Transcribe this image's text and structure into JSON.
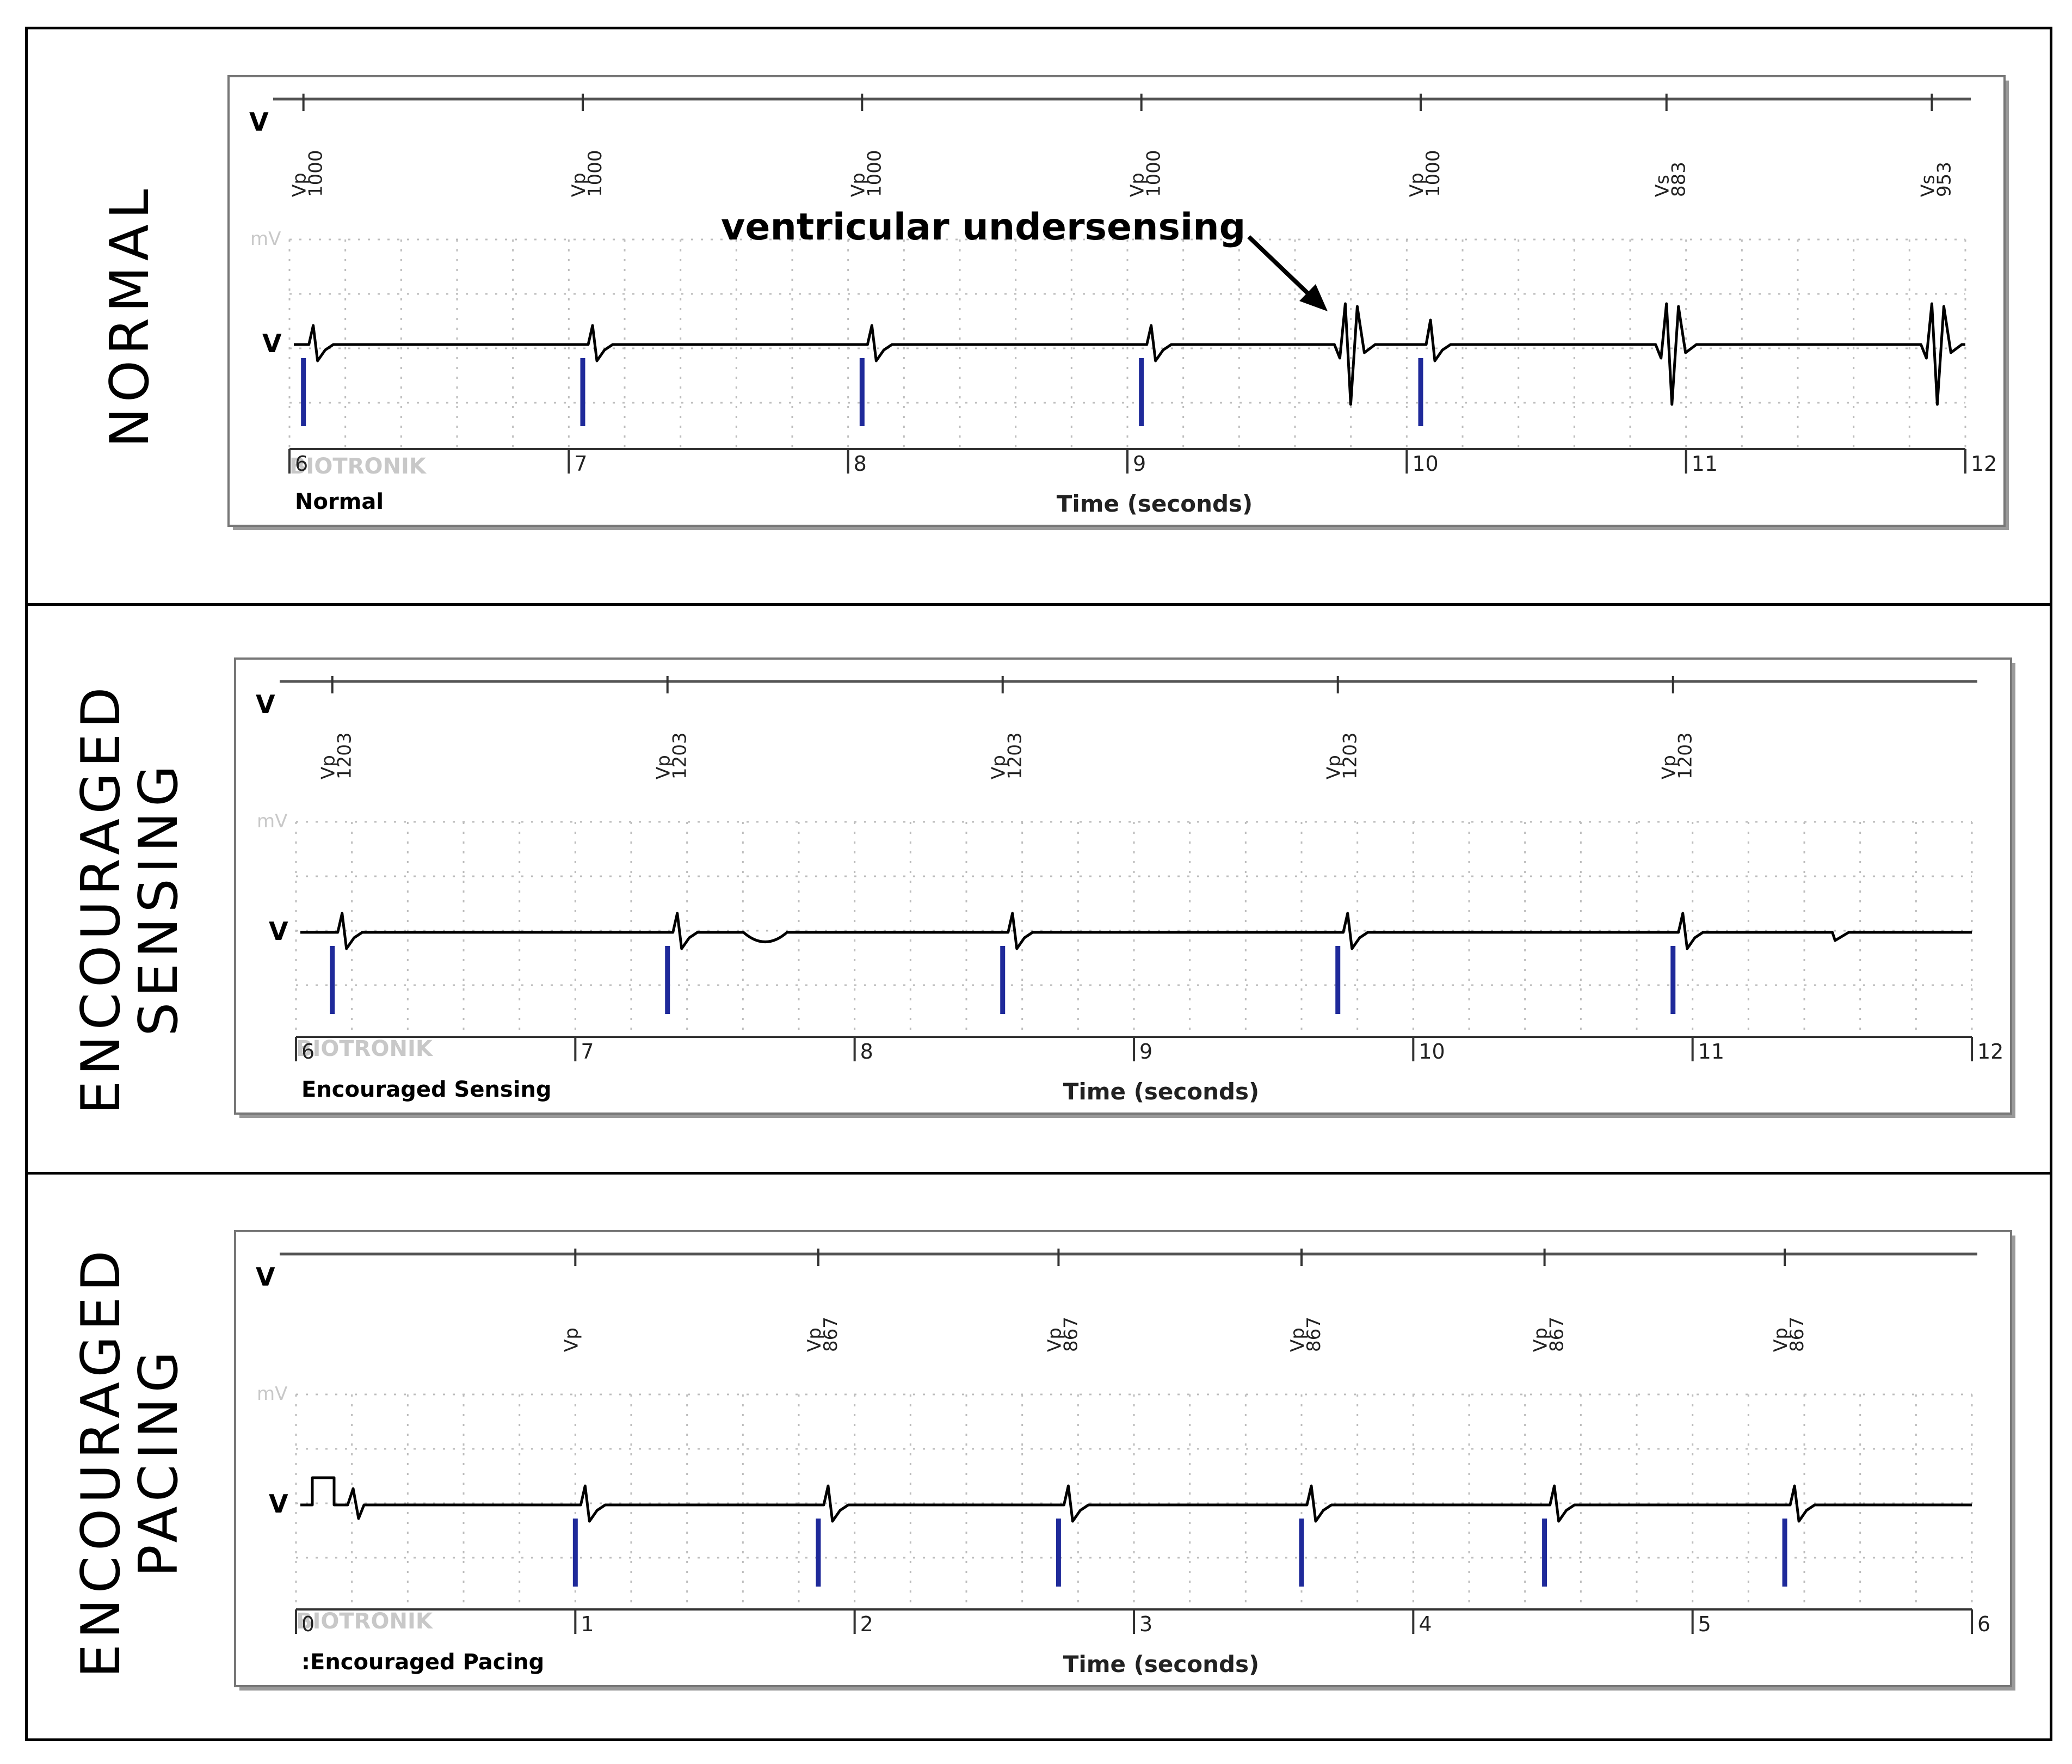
{
  "annotation": {
    "text": "ventricular undersensing"
  },
  "colors": {
    "trace": "#000000",
    "pace_marker": "#1f2a9a",
    "grid": "#bdbdbd",
    "watermark": "#c8c8c8",
    "frame_shadow": "#9a9a9a"
  },
  "sections": [
    {
      "label": "NORMAL",
      "mode_label": "Normal",
      "channel_label": "V",
      "unit_label": "mV",
      "watermark": "BIOTRONIK",
      "time_axis_label": "Time (seconds)",
      "time_ticks": [
        "6",
        "7",
        "8",
        "9",
        "10",
        "11",
        "12"
      ],
      "time_range": [
        6,
        12
      ],
      "markers": [
        {
          "type": "Vp",
          "interval": "1000",
          "t": 6.05
        },
        {
          "type": "Vp",
          "interval": "1000",
          "t": 7.05
        },
        {
          "type": "Vp",
          "interval": "1000",
          "t": 8.05
        },
        {
          "type": "Vp",
          "interval": "1000",
          "t": 9.05
        },
        {
          "type": "Vp",
          "interval": "1000",
          "t": 10.05
        },
        {
          "type": "Vs",
          "interval": "883",
          "t": 10.93
        },
        {
          "type": "Vs",
          "interval": "953",
          "t": 11.88
        }
      ],
      "pace_spikes": [
        6.05,
        7.05,
        8.05,
        9.05,
        10.05
      ],
      "beats": [
        {
          "t": 6.05,
          "kind": "paced"
        },
        {
          "t": 7.05,
          "kind": "paced"
        },
        {
          "t": 8.05,
          "kind": "paced"
        },
        {
          "t": 9.05,
          "kind": "paced"
        },
        {
          "t": 9.78,
          "kind": "sensed"
        },
        {
          "t": 10.05,
          "kind": "paced-small"
        },
        {
          "t": 10.93,
          "kind": "sensed"
        },
        {
          "t": 11.88,
          "kind": "sensed"
        }
      ]
    },
    {
      "label": "ENCOURAGED\nSENSING",
      "mode_label": "Encouraged Sensing",
      "channel_label": "V",
      "unit_label": "mV",
      "watermark": "BIOTRONIK",
      "time_axis_label": "Time (seconds)",
      "time_ticks": [
        "6",
        "7",
        "8",
        "9",
        "10",
        "11",
        "12"
      ],
      "time_range": [
        6,
        12
      ],
      "markers": [
        {
          "type": "Vp",
          "interval": "1203",
          "t": 6.13
        },
        {
          "type": "Vp",
          "interval": "1203",
          "t": 7.33
        },
        {
          "type": "Vp",
          "interval": "1203",
          "t": 8.53
        },
        {
          "type": "Vp",
          "interval": "1203",
          "t": 9.73
        },
        {
          "type": "Vp",
          "interval": "1203",
          "t": 10.93
        }
      ],
      "pace_spikes": [
        6.13,
        7.33,
        8.53,
        9.73,
        10.93
      ],
      "beats": [
        {
          "t": 6.13,
          "kind": "paced"
        },
        {
          "t": 7.33,
          "kind": "paced"
        },
        {
          "t": 7.68,
          "kind": "twave"
        },
        {
          "t": 8.53,
          "kind": "paced"
        },
        {
          "t": 9.73,
          "kind": "paced"
        },
        {
          "t": 10.93,
          "kind": "paced"
        },
        {
          "t": 11.52,
          "kind": "twave-small"
        }
      ]
    },
    {
      "label": "ENCOURAGED\nPACING",
      "mode_label": ":Encouraged Pacing",
      "channel_label": "V",
      "unit_label": "mV",
      "watermark": "BIOTRONIK",
      "time_axis_label": "Time (seconds)",
      "time_ticks": [
        "0",
        "1",
        "2",
        "3",
        "4",
        "5",
        "6"
      ],
      "time_range": [
        0,
        6
      ],
      "markers": [
        {
          "type": "Vp",
          "interval": "",
          "t": 1.0
        },
        {
          "type": "Vp",
          "interval": "867",
          "t": 1.87
        },
        {
          "type": "Vp",
          "interval": "867",
          "t": 2.73
        },
        {
          "type": "Vp",
          "interval": "867",
          "t": 3.6
        },
        {
          "type": "Vp",
          "interval": "867",
          "t": 4.47
        },
        {
          "type": "Vp",
          "interval": "867",
          "t": 5.33
        }
      ],
      "pace_spikes": [
        1.0,
        1.87,
        2.73,
        3.6,
        4.47,
        5.33
      ],
      "beats": [
        {
          "t": 0.0,
          "kind": "calibration"
        },
        {
          "t": 1.0,
          "kind": "paced"
        },
        {
          "t": 1.87,
          "kind": "paced"
        },
        {
          "t": 2.73,
          "kind": "paced"
        },
        {
          "t": 3.6,
          "kind": "paced"
        },
        {
          "t": 4.47,
          "kind": "paced"
        },
        {
          "t": 5.33,
          "kind": "paced"
        }
      ]
    }
  ]
}
